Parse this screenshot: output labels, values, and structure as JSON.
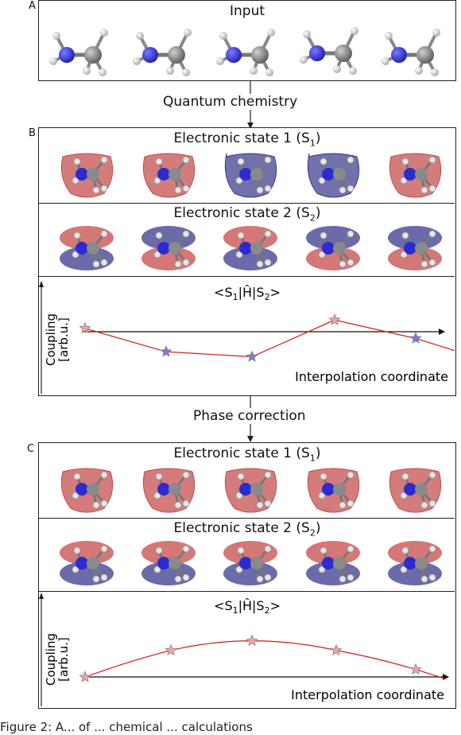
{
  "panels": {
    "A": {
      "label": "A",
      "title": "Input"
    },
    "B": {
      "label": "B",
      "state1": "Electronic state 1 (S",
      "state1_sub": "1",
      "state2": "Electronic state 2 (S",
      "state2_sub": "2",
      "plot_title": "<S1|Ĥ|S2>",
      "ylabel_1": "Coupling",
      "ylabel_2": "[arb.u.]",
      "xlabel": "Interpolation coordinate"
    },
    "C": {
      "label": "C",
      "state1": "Electronic state 1 (S",
      "state1_sub": "1",
      "state2": "Electronic state 2 (S",
      "state2_sub": "2",
      "plot_title": "<S1|Ĥ|S2>",
      "ylabel_1": "Coupling",
      "ylabel_2": "[arb.u.]",
      "xlabel": "Interpolation coordinate"
    }
  },
  "arrows": {
    "step1": "Quantum chemistry",
    "step2": "Phase correction"
  },
  "caption": "Figure 2: A... of ... chemical ... calculations",
  "orbital_phases": {
    "B_state1": [
      "red",
      "red",
      "blue",
      "blue",
      "red"
    ],
    "B_state2": [
      "red-top",
      "blue-top",
      "red-top",
      "blue-top",
      "blue-top"
    ],
    "C_state1": [
      "red",
      "red",
      "red",
      "red",
      "red"
    ],
    "C_state2": [
      "red-top",
      "red-top",
      "red-top",
      "red-top",
      "red-top"
    ]
  },
  "colors": {
    "red": "#c44a4a",
    "blue": "#3a3a8c",
    "nitrogen": "#2b2bd0",
    "carbon": "#8a8a8a",
    "hydrogen": "#e6e6e6",
    "curve": "#cc1a1a"
  },
  "chart_data": [
    {
      "type": "line",
      "title": "<S1|Ĥ|S2>",
      "xlabel": "Interpolation coordinate",
      "ylabel": "Coupling [arb.u.]",
      "x": [
        0,
        1,
        2,
        3,
        4
      ],
      "values": [
        0.2,
        -1.2,
        -1.5,
        0.7,
        -0.4
      ],
      "marker_colors": [
        "red",
        "blue",
        "blue",
        "red",
        "blue"
      ]
    },
    {
      "type": "line",
      "title": "<S1|Ĥ|S2>",
      "xlabel": "Interpolation coordinate",
      "ylabel": "Coupling [arb.u.]",
      "x": [
        0,
        1,
        2,
        3,
        4
      ],
      "values": [
        0.2,
        1.6,
        2.1,
        1.6,
        0.6
      ],
      "marker_colors": [
        "red",
        "red",
        "red",
        "red",
        "red"
      ]
    }
  ]
}
